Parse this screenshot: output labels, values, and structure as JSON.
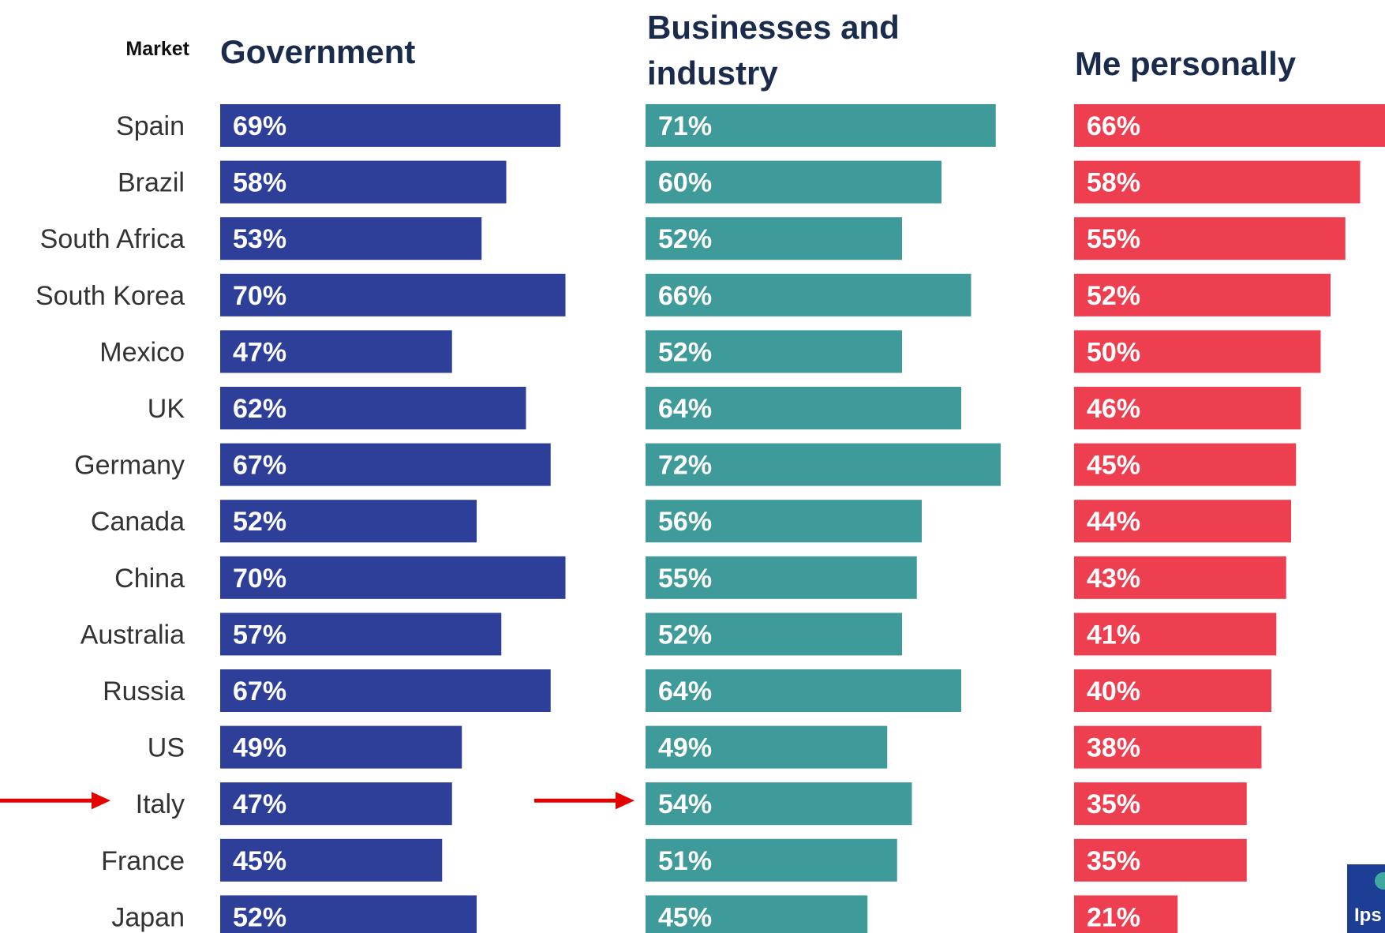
{
  "chart_data": {
    "type": "bar",
    "orientation": "horizontal",
    "category_header": "Market",
    "categories": [
      "Spain",
      "Brazil",
      "South Africa",
      "South Korea",
      "Mexico",
      "UK",
      "Germany",
      "Canada",
      "China",
      "Australia",
      "Russia",
      "US",
      "Italy",
      "France",
      "Japan"
    ],
    "series": [
      {
        "name": "Government",
        "color": "#2E3F9A",
        "values": [
          69,
          58,
          53,
          70,
          47,
          62,
          67,
          52,
          70,
          57,
          67,
          49,
          47,
          45,
          52
        ]
      },
      {
        "name": "Businesses and industry",
        "color": "#3F9A9A",
        "values": [
          71,
          60,
          52,
          66,
          52,
          64,
          72,
          56,
          55,
          52,
          64,
          49,
          54,
          51,
          45
        ]
      },
      {
        "name": "Me personally",
        "color": "#EE3F50",
        "values": [
          66,
          58,
          55,
          52,
          50,
          46,
          45,
          44,
          43,
          41,
          40,
          38,
          35,
          35,
          21
        ]
      }
    ],
    "value_suffix": "%",
    "highlighted_category": "Italy",
    "grid": false,
    "legend": "none"
  },
  "annotations": {
    "arrow_color": "#E50000",
    "arrows_point_to": "Italy"
  },
  "logo": {
    "text": "Ips",
    "color": "#1C3E94",
    "accent": "#3FA9A1"
  }
}
